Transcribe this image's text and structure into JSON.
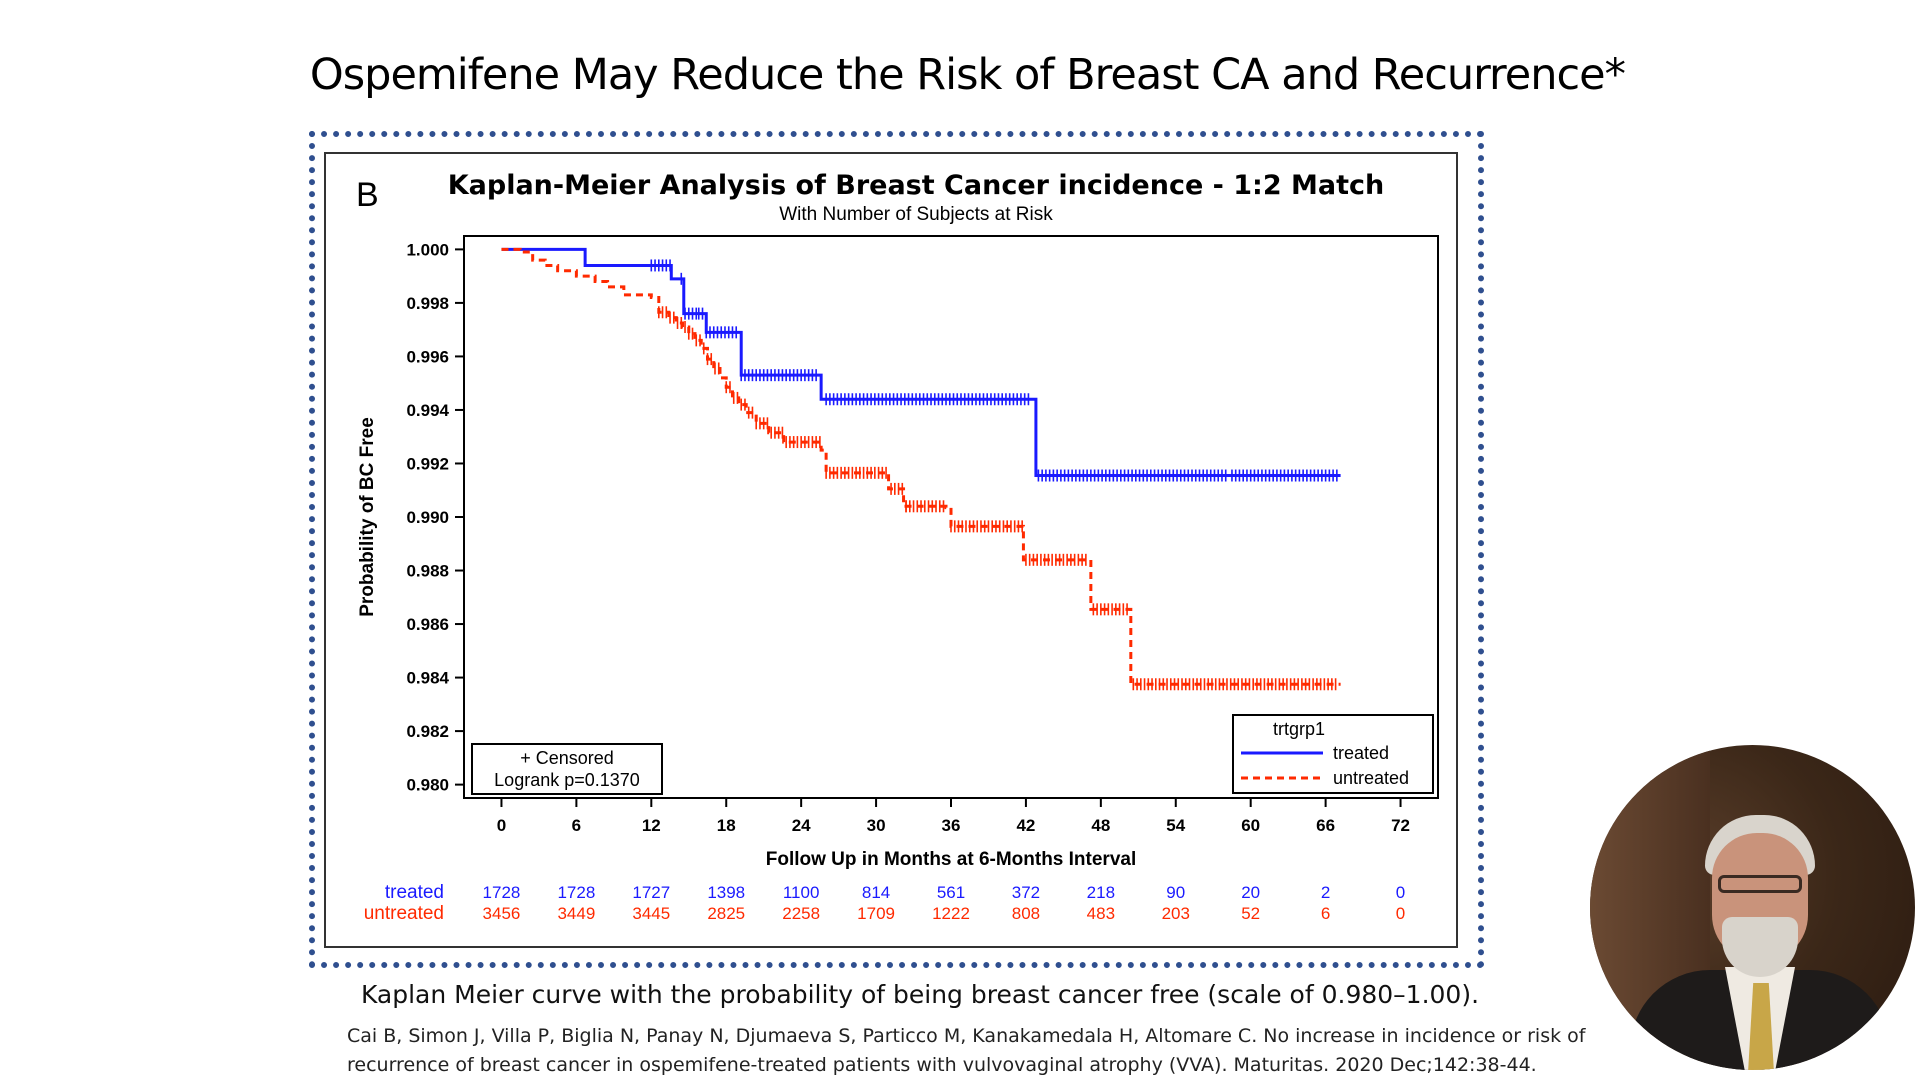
{
  "slide": {
    "title": "Ospemifene May Reduce the Risk of Breast CA and Recurrence*",
    "caption": "Kaplan Meier curve with the probability of being breast cancer free (scale of 0.980–1.00).",
    "citation": "Cai B, Simon J, Villa P, Biglia N, Panay N, Djumaeva S, Particco M, Kanakamedala H, Altomare C. No increase in incidence or risk of recurrence of breast cancer in ospemifene-treated patients with vulvovaginal atrophy (VVA). Maturitas. 2020 Dec;142:38-44."
  },
  "chart_data": {
    "type": "line",
    "panel_label": "B",
    "title": "Kaplan-Meier Analysis of Breast Cancer incidence - 1:2 Match",
    "subtitle": "With Number of Subjects at Risk",
    "xlabel": "Follow Up in Months at 6-Months Interval",
    "ylabel": "Probability of BC Free",
    "xlim": [
      -3,
      75
    ],
    "ylim": [
      0.9795,
      1.0005
    ],
    "x_ticks": [
      "0",
      "6",
      "12",
      "18",
      "24",
      "30",
      "36",
      "42",
      "48",
      "54",
      "60",
      "66",
      "72"
    ],
    "y_ticks": [
      "0.980",
      "0.982",
      "0.984",
      "0.986",
      "0.988",
      "0.990",
      "0.992",
      "0.994",
      "0.996",
      "0.998",
      "1.000"
    ],
    "legend": {
      "title": "trtgrp1",
      "position": "bottom-right",
      "entries": [
        {
          "name": "treated",
          "color": "#1a1aff",
          "style": "solid"
        },
        {
          "name": "untreated",
          "color": "#ff2a00",
          "style": "dashed"
        }
      ]
    },
    "annotation": {
      "position": "bottom-left",
      "line1": "+ Censored",
      "line2": "Logrank p=0.1370"
    },
    "series": [
      {
        "name": "treated",
        "color": "#1a1aff",
        "style": "solid",
        "steps": [
          [
            0,
            1.0
          ],
          [
            6.7,
            0.9994
          ],
          [
            13.6,
            0.9989
          ],
          [
            14.6,
            0.9976
          ],
          [
            16.4,
            0.9969
          ],
          [
            19.2,
            0.9953
          ],
          [
            25.6,
            0.9944
          ],
          [
            42.8,
            0.99155
          ],
          [
            67.2,
            0.99155
          ]
        ],
        "censored_ranges": [
          [
            12.0,
            13.6
          ],
          [
            14.4,
            15.6
          ],
          [
            15.8,
            18.8
          ],
          [
            19.2,
            25.2
          ],
          [
            26.0,
            42.4
          ],
          [
            43.0,
            58.0
          ],
          [
            58.5,
            67.0
          ]
        ]
      },
      {
        "name": "untreated",
        "color": "#ff2a00",
        "style": "dashed",
        "steps": [
          [
            0,
            1.0
          ],
          [
            1.5,
            0.9999
          ],
          [
            2.5,
            0.9996
          ],
          [
            3.5,
            0.9994
          ],
          [
            4.5,
            0.9992
          ],
          [
            6.0,
            0.999
          ],
          [
            7.5,
            0.9988
          ],
          [
            8.5,
            0.9986
          ],
          [
            9.8,
            0.9983
          ],
          [
            12.0,
            0.9982
          ],
          [
            12.6,
            0.99765
          ],
          [
            13.4,
            0.99745
          ],
          [
            14.0,
            0.99725
          ],
          [
            14.5,
            0.9971
          ],
          [
            15.0,
            0.99685
          ],
          [
            15.5,
            0.9966
          ],
          [
            16.0,
            0.9963
          ],
          [
            16.5,
            0.9959
          ],
          [
            17.0,
            0.99555
          ],
          [
            17.5,
            0.9952
          ],
          [
            18.0,
            0.99485
          ],
          [
            18.5,
            0.99445
          ],
          [
            19.0,
            0.9942
          ],
          [
            19.6,
            0.9939
          ],
          [
            20.4,
            0.9935
          ],
          [
            21.4,
            0.99315
          ],
          [
            22.6,
            0.9928
          ],
          [
            25.6,
            0.9925
          ],
          [
            26.0,
            0.99165
          ],
          [
            31.0,
            0.99105
          ],
          [
            32.2,
            0.9904
          ],
          [
            35.6,
            0.99035
          ],
          [
            36.0,
            0.98965
          ],
          [
            41.8,
            0.9884
          ],
          [
            47.2,
            0.98655
          ],
          [
            50.4,
            0.98375
          ],
          [
            67.2,
            0.98375
          ]
        ],
        "censored_ranges": [
          [
            12.6,
            17.6
          ],
          [
            18.0,
            25.6
          ],
          [
            26.0,
            31.0
          ],
          [
            31.2,
            32.4
          ],
          [
            32.4,
            35.6
          ],
          [
            36.0,
            41.8
          ],
          [
            42.0,
            47.0
          ],
          [
            47.4,
            50.2
          ],
          [
            50.6,
            67.0
          ]
        ]
      }
    ],
    "at_risk": {
      "treated": [
        "1728",
        "1728",
        "1727",
        "1398",
        "1100",
        "814",
        "561",
        "372",
        "218",
        "90",
        "20",
        "2",
        "0"
      ],
      "untreated": [
        "3456",
        "3449",
        "3445",
        "2825",
        "2258",
        "1709",
        "1222",
        "808",
        "483",
        "203",
        "52",
        "6",
        "0"
      ]
    }
  }
}
